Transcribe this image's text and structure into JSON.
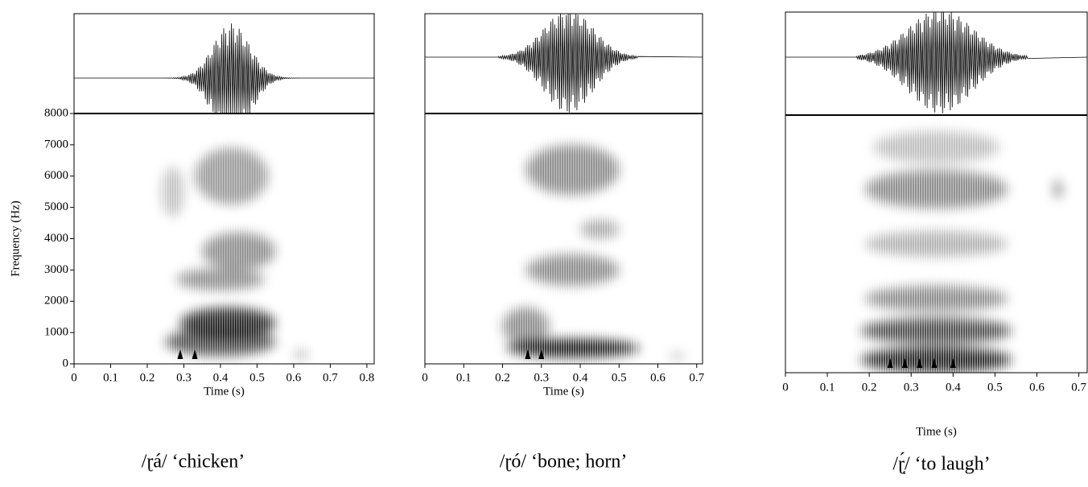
{
  "chart_data": [
    {
      "type": "spectrogram",
      "xlabel": "Time (s)",
      "ylabel": "Frequency (Hz)",
      "xlim": [
        0,
        0.82
      ],
      "xticks": [
        0,
        0.1,
        0.2,
        0.3,
        0.4,
        0.5,
        0.6,
        0.7,
        0.8
      ],
      "ylim": [
        0,
        8000
      ],
      "yticks": [
        0,
        1000,
        2000,
        3000,
        4000,
        5000,
        6000,
        7000,
        8000
      ],
      "arrows": [
        0.29,
        0.33
      ],
      "caption": "/ɽá/ ‘chicken’"
    },
    {
      "type": "spectrogram",
      "xlabel": "Time (s)",
      "xlim": [
        0,
        0.715
      ],
      "xticks": [
        0,
        0.1,
        0.2,
        0.3,
        0.4,
        0.5,
        0.6,
        0.7
      ],
      "ylim": [
        0,
        8000
      ],
      "arrows": [
        0.265,
        0.3
      ],
      "caption": "/ɽó/ ‘bone; horn’"
    },
    {
      "type": "spectrogram",
      "xlabel": "Time (s)",
      "xlim": [
        0,
        0.72
      ],
      "xticks": [
        0,
        0.1,
        0.2,
        0.3,
        0.4,
        0.5,
        0.6,
        0.7
      ],
      "ylim": [
        0,
        8000
      ],
      "arrows": [
        0.25,
        0.285,
        0.32,
        0.355,
        0.4
      ],
      "caption": "/ɽ̩́/ ‘to laugh’"
    }
  ]
}
